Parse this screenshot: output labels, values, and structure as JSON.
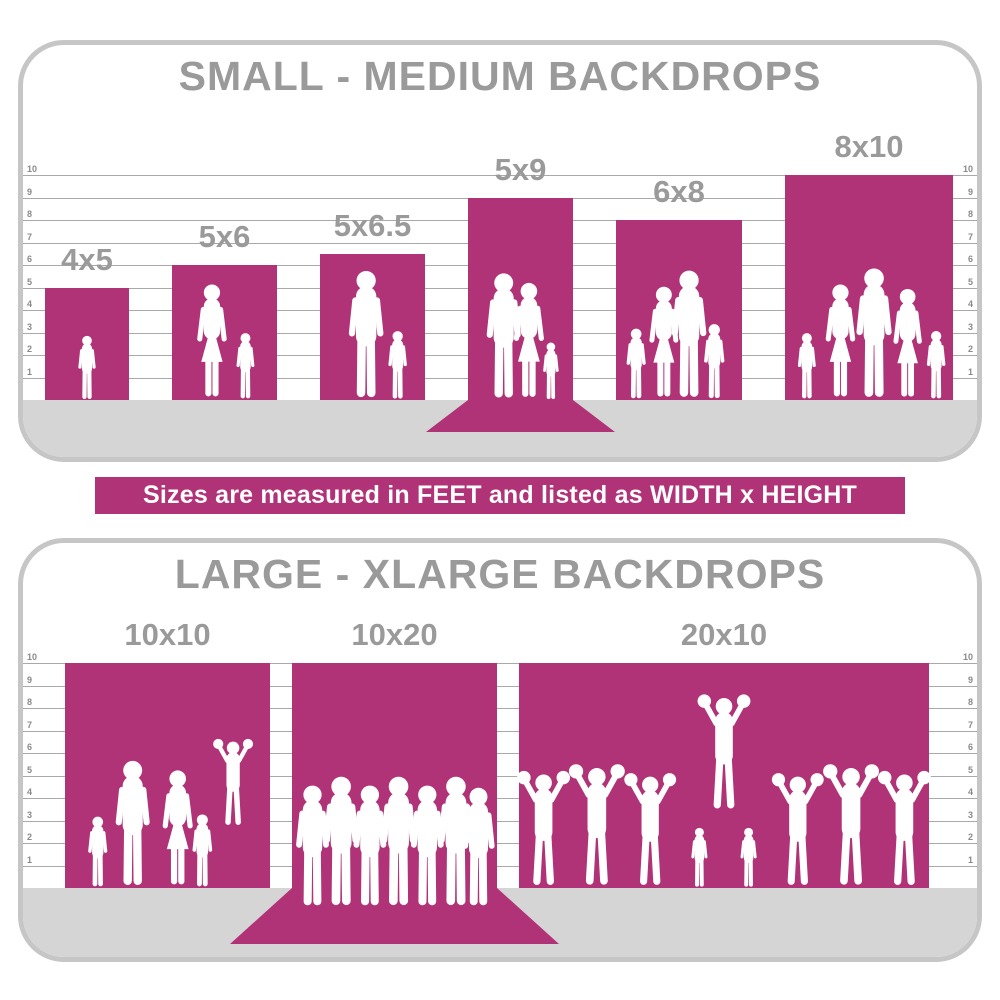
{
  "colors": {
    "accent": "#b13377",
    "panel_border": "#c6c6c6",
    "title_gray": "#9a9a9a",
    "floor": "#d5d5d5",
    "gridline": "#a9a9a9",
    "tick": "#8a8a8a",
    "silhouette": "#ffffff",
    "background": "#ffffff",
    "banner_text": "#ffffff"
  },
  "banner": {
    "text": "Sizes are measured in FEET and listed as WIDTH x HEIGHT"
  },
  "chart_data": [
    {
      "type": "bar",
      "title": "SMALL - MEDIUM BACKDROPS",
      "unit": "feet",
      "size_format": "WIDTH x HEIGHT",
      "categories": [
        "4x5",
        "5x6",
        "5x6.5",
        "5x9",
        "6x8",
        "8x10"
      ],
      "values": [
        5,
        6,
        6.5,
        9,
        8,
        10
      ],
      "bar_widths_ft": [
        4,
        5,
        5,
        5,
        6,
        8
      ],
      "ylim": [
        0,
        10
      ],
      "yticks": [
        1,
        2,
        3,
        4,
        5,
        6,
        7,
        8,
        9,
        10
      ],
      "ticks_on_both_sides": true,
      "grid": true,
      "floor_sweep_index": 3,
      "figures": [
        "toddler-girl",
        "mother-and-son",
        "father-and-son",
        "family-of-three",
        "family-of-four",
        "family-of-five"
      ]
    },
    {
      "type": "bar",
      "title": "LARGE - XLARGE BACKDROPS",
      "unit": "feet",
      "size_format": "WIDTH x HEIGHT",
      "categories": [
        "10x10",
        "10x20",
        "20x10"
      ],
      "values": [
        10,
        20,
        10
      ],
      "drawn_heights": [
        10,
        10,
        10
      ],
      "bar_widths_ft": [
        10,
        10,
        20
      ],
      "ylim": [
        0,
        10
      ],
      "yticks": [
        1,
        2,
        3,
        4,
        5,
        6,
        7,
        8,
        9,
        10
      ],
      "ticks_on_both_sides": true,
      "grid": true,
      "floor_sweep_index": 1,
      "figures": [
        "family-group",
        "sports-team",
        "cheerleader-squad"
      ]
    }
  ]
}
